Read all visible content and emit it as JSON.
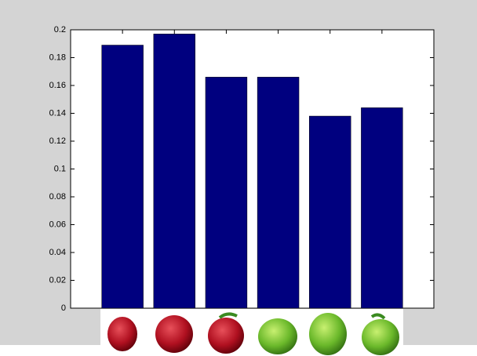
{
  "chart_data": {
    "type": "bar",
    "x": [
      1,
      2,
      3,
      4,
      5,
      6
    ],
    "xlim": [
      0,
      7
    ],
    "values": [
      0.189,
      0.197,
      0.166,
      0.166,
      0.138,
      0.144
    ],
    "color": "#00007f",
    "ylim": [
      0,
      0.2
    ],
    "yticks": [
      0,
      0.02,
      0.04,
      0.06,
      0.08,
      0.1,
      0.12,
      0.14,
      0.16,
      0.18,
      0.2
    ],
    "grid": false
  }
}
